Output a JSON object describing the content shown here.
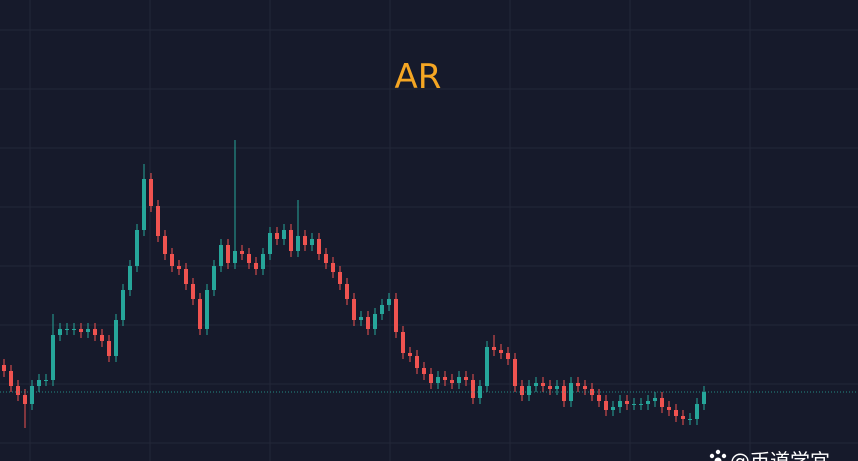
{
  "chart_data": {
    "type": "candlestick",
    "title": "AR",
    "watermark": "@币道学宜",
    "up_color": "#26a69a",
    "down_color": "#ef5350",
    "grid": true,
    "ylim": [
      0,
      100
    ],
    "open": [
      25,
      23,
      18,
      15,
      12,
      18,
      20,
      20,
      35,
      37,
      37,
      37,
      36,
      37,
      35,
      33,
      28,
      40,
      50,
      58,
      70,
      87,
      78,
      68,
      62,
      58,
      57,
      52,
      47,
      37,
      50,
      58,
      65,
      59,
      63,
      62,
      59,
      57,
      62,
      69,
      67,
      70,
      63,
      68,
      65,
      67,
      62,
      59,
      56,
      52,
      47,
      40,
      41,
      37,
      42,
      45,
      47,
      36,
      29,
      28,
      24,
      22,
      19,
      21,
      20,
      19,
      21,
      20,
      14,
      18,
      31,
      30,
      29,
      27,
      18,
      15,
      18,
      19,
      18,
      17,
      18,
      13,
      19,
      18,
      17,
      15,
      13,
      10,
      11,
      13,
      12,
      12,
      12,
      13,
      14,
      11,
      10,
      8,
      7,
      7,
      12
    ],
    "high": [
      27,
      25,
      20,
      17,
      20,
      22,
      22,
      42,
      39,
      39,
      39,
      39,
      39,
      39,
      37,
      35,
      42,
      52,
      60,
      72,
      92,
      89,
      80,
      70,
      64,
      60,
      59,
      54,
      49,
      52,
      60,
      67,
      67,
      100,
      65,
      64,
      61,
      64,
      71,
      71,
      72,
      72,
      80,
      70,
      69,
      69,
      64,
      61,
      58,
      54,
      49,
      43,
      43,
      44,
      47,
      49,
      49,
      38,
      31,
      30,
      26,
      24,
      23,
      23,
      22,
      23,
      23,
      22,
      20,
      33,
      35,
      32,
      31,
      29,
      20,
      20,
      21,
      21,
      20,
      20,
      20,
      21,
      21,
      20,
      19,
      17,
      15,
      13,
      15,
      15,
      14,
      14,
      15,
      16,
      16,
      13,
      12,
      10,
      9,
      14,
      18
    ],
    "low": [
      21,
      16,
      13,
      4,
      10,
      16,
      18,
      18,
      33,
      35,
      35,
      34,
      34,
      33,
      31,
      26,
      26,
      38,
      48,
      56,
      68,
      76,
      66,
      60,
      56,
      55,
      50,
      45,
      35,
      35,
      48,
      56,
      57,
      57,
      60,
      57,
      55,
      55,
      60,
      65,
      65,
      61,
      61,
      63,
      63,
      60,
      57,
      54,
      50,
      45,
      38,
      38,
      35,
      35,
      40,
      43,
      34,
      27,
      26,
      22,
      20,
      17,
      17,
      18,
      17,
      17,
      18,
      12,
      12,
      16,
      28,
      27,
      25,
      16,
      13,
      13,
      16,
      16,
      15,
      15,
      11,
      11,
      16,
      15,
      13,
      11,
      8,
      8,
      9,
      10,
      10,
      10,
      10,
      11,
      9,
      8,
      6,
      5,
      5,
      5,
      10
    ],
    "close": [
      23,
      18,
      15,
      12,
      18,
      20,
      20,
      35,
      37,
      37,
      37,
      36,
      37,
      35,
      33,
      28,
      40,
      50,
      58,
      70,
      87,
      78,
      68,
      62,
      58,
      57,
      52,
      47,
      37,
      50,
      58,
      65,
      59,
      63,
      62,
      59,
      57,
      62,
      69,
      67,
      70,
      63,
      68,
      65,
      67,
      62,
      59,
      56,
      52,
      47,
      40,
      41,
      37,
      42,
      45,
      47,
      36,
      29,
      28,
      24,
      22,
      19,
      21,
      20,
      19,
      21,
      20,
      14,
      18,
      31,
      30,
      29,
      27,
      18,
      15,
      18,
      19,
      18,
      17,
      18,
      13,
      19,
      18,
      17,
      15,
      13,
      10,
      11,
      13,
      12,
      12,
      12,
      13,
      14,
      11,
      10,
      8,
      7,
      7,
      12,
      16
    ]
  }
}
